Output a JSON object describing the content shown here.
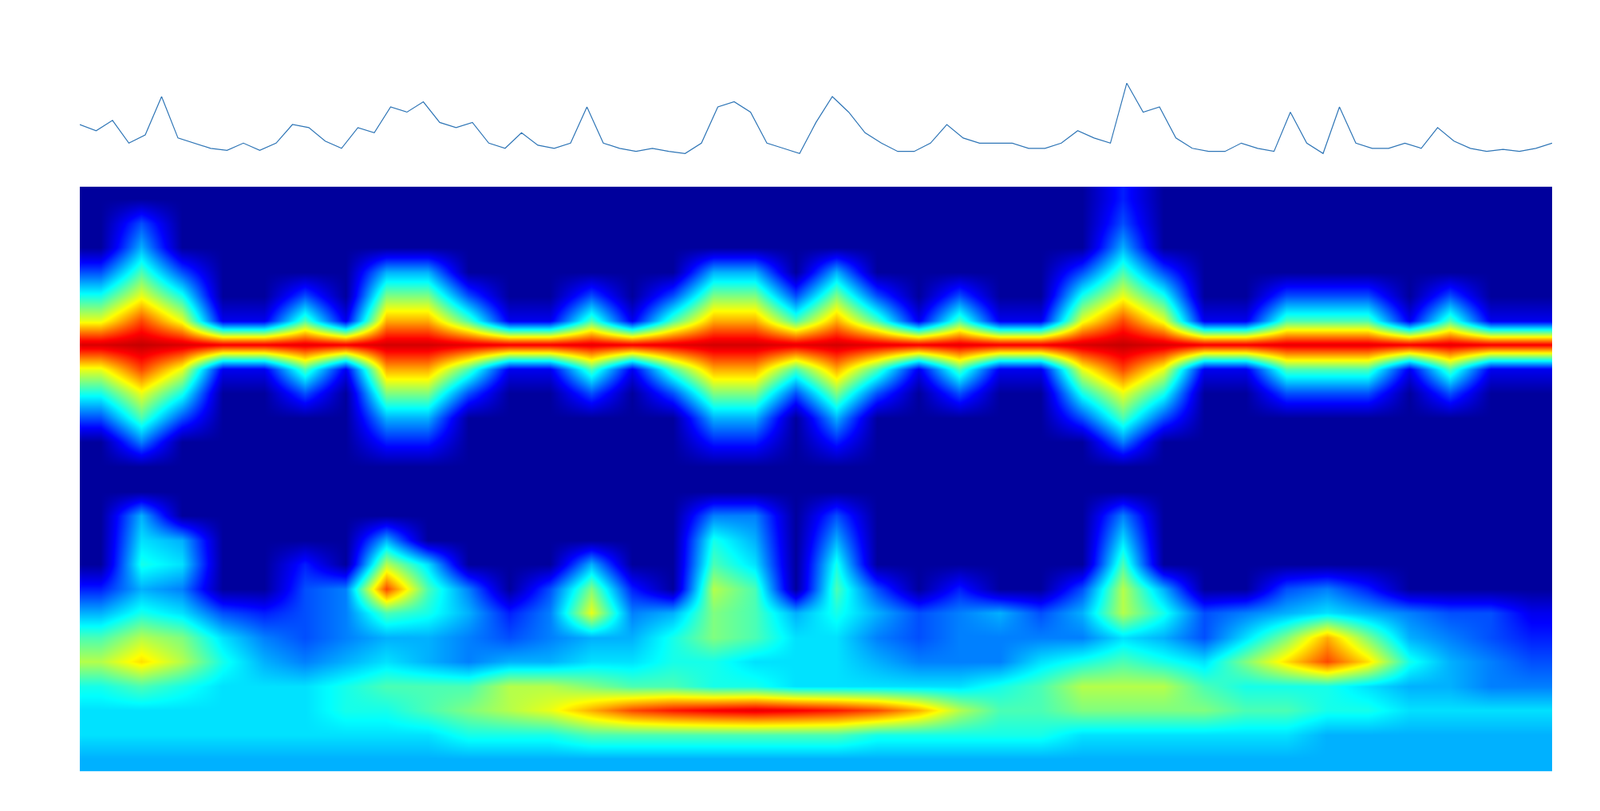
{
  "chart_data": [
    {
      "type": "line",
      "color": "#2e75b6",
      "tick_labels": false,
      "x": [
        0,
        1,
        2,
        3,
        4,
        5,
        6,
        7,
        8,
        9,
        10,
        11,
        12,
        13,
        14,
        15,
        16,
        17,
        18,
        19,
        20,
        21,
        22,
        23,
        24,
        25,
        26,
        27,
        28,
        29,
        30,
        31,
        32,
        33,
        34,
        35,
        36,
        37,
        38,
        39,
        40,
        41,
        42,
        43,
        44,
        45,
        46,
        47,
        48,
        49,
        50,
        51,
        52,
        53,
        54,
        55,
        56,
        57,
        58,
        59,
        60,
        61,
        62,
        63,
        64,
        65,
        66,
        67,
        68,
        69,
        70,
        71,
        72,
        73,
        74,
        75,
        76,
        77,
        78,
        79,
        80,
        81,
        82,
        83,
        84,
        85,
        86,
        87,
        88,
        89,
        90
      ],
      "values": [
        43,
        37,
        47,
        25,
        33,
        70,
        30,
        25,
        20,
        18,
        25,
        18,
        25,
        43,
        40,
        27,
        20,
        40,
        35,
        60,
        55,
        65,
        45,
        40,
        45,
        25,
        20,
        35,
        23,
        20,
        25,
        60,
        25,
        20,
        17,
        20,
        17,
        15,
        25,
        60,
        65,
        55,
        25,
        20,
        15,
        45,
        70,
        55,
        35,
        25,
        17,
        17,
        25,
        43,
        30,
        25,
        25,
        25,
        20,
        20,
        25,
        37,
        30,
        25,
        83,
        55,
        60,
        30,
        20,
        17,
        17,
        25,
        20,
        17,
        55,
        25,
        15,
        60,
        25,
        20,
        20,
        25,
        20,
        40,
        27,
        20,
        17,
        19,
        17,
        20,
        25
      ],
      "xlim": [
        0,
        90
      ],
      "ylim": [
        5,
        85
      ]
    },
    {
      "type": "heatmap",
      "tick_labels": false,
      "x": [
        0,
        1,
        2,
        3,
        4,
        5,
        6,
        7,
        8,
        9,
        10,
        11,
        12,
        13,
        14,
        15,
        16,
        17,
        18,
        19,
        20,
        21,
        22,
        23,
        24,
        25,
        26,
        27,
        28,
        29,
        30,
        31,
        32,
        33,
        34,
        35
      ],
      "y": [
        0,
        1,
        2,
        3,
        4,
        5,
        6,
        7,
        8,
        9,
        10,
        11,
        12,
        13,
        14,
        15,
        16,
        17,
        18,
        19,
        20,
        21,
        22,
        23
      ],
      "xlim": [
        -0.5,
        35.5
      ],
      "ylim": [
        23.5,
        -0.5
      ],
      "zlim": [
        0,
        100
      ],
      "cells": [
        [
          0,
          0,
          0,
          0,
          0,
          0,
          0,
          0,
          0,
          0,
          0,
          0,
          0,
          0,
          0,
          0,
          0,
          0,
          0,
          0,
          0,
          0,
          0,
          0,
          0,
          15,
          0,
          0,
          0,
          0,
          0,
          0,
          0,
          0,
          0,
          0
        ],
        [
          0,
          20,
          0,
          0,
          0,
          0,
          0,
          0,
          0,
          0,
          0,
          0,
          0,
          0,
          0,
          0,
          0,
          0,
          0,
          0,
          0,
          0,
          0,
          0,
          0,
          20,
          0,
          0,
          0,
          0,
          0,
          0,
          0,
          0,
          0,
          0
        ],
        [
          0,
          30,
          0,
          0,
          0,
          0,
          0,
          0,
          0,
          0,
          0,
          0,
          0,
          0,
          0,
          0,
          0,
          0,
          0,
          0,
          0,
          0,
          0,
          0,
          0,
          30,
          0,
          0,
          0,
          0,
          0,
          0,
          0,
          0,
          0,
          0
        ],
        [
          20,
          45,
          20,
          0,
          0,
          0,
          0,
          30,
          30,
          0,
          0,
          0,
          0,
          0,
          0,
          30,
          30,
          0,
          30,
          0,
          0,
          0,
          0,
          0,
          20,
          45,
          20,
          0,
          0,
          0,
          0,
          0,
          0,
          0,
          0,
          0
        ],
        [
          40,
          60,
          40,
          0,
          0,
          20,
          0,
          50,
          50,
          20,
          0,
          0,
          20,
          0,
          20,
          50,
          50,
          20,
          50,
          20,
          0,
          20,
          0,
          0,
          40,
          60,
          40,
          0,
          0,
          20,
          20,
          20,
          0,
          20,
          0,
          0
        ],
        [
          60,
          80,
          60,
          10,
          10,
          45,
          10,
          70,
          70,
          45,
          10,
          10,
          45,
          10,
          45,
          70,
          70,
          45,
          70,
          45,
          10,
          45,
          10,
          10,
          60,
          80,
          60,
          10,
          10,
          45,
          45,
          45,
          10,
          45,
          10,
          10
        ],
        [
          92,
          95,
          92,
          88,
          88,
          90,
          88,
          93,
          93,
          90,
          88,
          88,
          90,
          88,
          90,
          93,
          93,
          90,
          93,
          90,
          88,
          90,
          88,
          88,
          92,
          95,
          92,
          88,
          88,
          90,
          90,
          90,
          88,
          90,
          88,
          88
        ],
        [
          60,
          80,
          60,
          10,
          10,
          45,
          10,
          70,
          70,
          45,
          10,
          10,
          45,
          10,
          45,
          70,
          70,
          45,
          70,
          45,
          10,
          45,
          10,
          10,
          60,
          80,
          60,
          10,
          10,
          45,
          45,
          45,
          10,
          45,
          10,
          10
        ],
        [
          40,
          60,
          40,
          0,
          0,
          20,
          0,
          50,
          50,
          20,
          0,
          0,
          20,
          0,
          20,
          50,
          50,
          20,
          50,
          20,
          0,
          20,
          0,
          0,
          40,
          60,
          40,
          0,
          0,
          20,
          20,
          20,
          0,
          20,
          0,
          0
        ],
        [
          20,
          45,
          20,
          0,
          0,
          0,
          0,
          30,
          30,
          0,
          0,
          0,
          0,
          0,
          0,
          30,
          30,
          0,
          30,
          0,
          0,
          0,
          0,
          0,
          20,
          45,
          20,
          0,
          0,
          0,
          0,
          0,
          0,
          0,
          0,
          0
        ],
        [
          0,
          25,
          0,
          0,
          0,
          0,
          0,
          15,
          15,
          0,
          0,
          0,
          0,
          0,
          0,
          15,
          15,
          0,
          15,
          0,
          0,
          0,
          0,
          0,
          0,
          25,
          0,
          0,
          0,
          0,
          0,
          0,
          0,
          0,
          0,
          0
        ],
        [
          0,
          0,
          0,
          0,
          0,
          0,
          0,
          0,
          0,
          0,
          0,
          0,
          0,
          0,
          0,
          0,
          0,
          0,
          0,
          0,
          0,
          0,
          0,
          0,
          0,
          0,
          0,
          0,
          0,
          0,
          0,
          0,
          0,
          0,
          0,
          0
        ],
        [
          0,
          0,
          0,
          0,
          0,
          0,
          0,
          0,
          0,
          0,
          0,
          0,
          0,
          0,
          0,
          0,
          0,
          0,
          0,
          0,
          0,
          0,
          0,
          0,
          0,
          0,
          0,
          0,
          0,
          0,
          0,
          0,
          0,
          0,
          0,
          0
        ],
        [
          0,
          30,
          0,
          0,
          0,
          0,
          0,
          0,
          0,
          0,
          0,
          0,
          0,
          0,
          0,
          25,
          25,
          0,
          20,
          0,
          0,
          0,
          0,
          0,
          0,
          25,
          0,
          0,
          0,
          0,
          0,
          0,
          0,
          0,
          0,
          0
        ],
        [
          0,
          35,
          30,
          0,
          0,
          0,
          0,
          30,
          0,
          0,
          0,
          0,
          0,
          0,
          0,
          40,
          30,
          0,
          30,
          0,
          0,
          0,
          0,
          0,
          0,
          35,
          0,
          0,
          0,
          0,
          0,
          0,
          0,
          0,
          0,
          0
        ],
        [
          0,
          40,
          35,
          0,
          0,
          15,
          0,
          55,
          35,
          0,
          0,
          0,
          30,
          0,
          0,
          45,
          35,
          0,
          40,
          0,
          0,
          0,
          0,
          0,
          0,
          45,
          0,
          0,
          0,
          0,
          0,
          0,
          0,
          0,
          0,
          0
        ],
        [
          15,
          30,
          25,
          0,
          0,
          20,
          25,
          80,
          45,
          25,
          0,
          20,
          50,
          15,
          0,
          55,
          45,
          0,
          45,
          20,
          0,
          15,
          0,
          0,
          20,
          55,
          30,
          0,
          0,
          20,
          25,
          15,
          0,
          0,
          0,
          0
        ],
        [
          30,
          40,
          35,
          20,
          15,
          20,
          25,
          45,
          40,
          30,
          15,
          25,
          60,
          25,
          30,
          50,
          45,
          30,
          40,
          30,
          20,
          25,
          30,
          20,
          30,
          55,
          40,
          20,
          25,
          30,
          35,
          30,
          25,
          20,
          20,
          10
        ],
        [
          45,
          55,
          50,
          35,
          25,
          20,
          25,
          30,
          30,
          25,
          20,
          25,
          30,
          30,
          40,
          50,
          45,
          35,
          35,
          25,
          20,
          25,
          25,
          25,
          25,
          35,
          30,
          20,
          35,
          50,
          70,
          50,
          30,
          25,
          20,
          15
        ],
        [
          55,
          65,
          55,
          40,
          30,
          25,
          30,
          35,
          30,
          25,
          30,
          30,
          35,
          35,
          40,
          40,
          35,
          35,
          35,
          30,
          25,
          25,
          25,
          35,
          40,
          45,
          40,
          35,
          50,
          65,
          80,
          65,
          40,
          30,
          25,
          20
        ],
        [
          40,
          45,
          40,
          35,
          35,
          35,
          40,
          45,
          45,
          45,
          55,
          55,
          50,
          45,
          45,
          40,
          40,
          35,
          35,
          35,
          35,
          35,
          40,
          45,
          55,
          55,
          55,
          45,
          40,
          40,
          40,
          35,
          30,
          30,
          25,
          25
        ],
        [
          35,
          35,
          35,
          35,
          35,
          35,
          40,
          40,
          45,
          50,
          55,
          60,
          70,
          80,
          85,
          88,
          90,
          88,
          85,
          80,
          70,
          55,
          45,
          45,
          50,
          50,
          50,
          50,
          45,
          45,
          40,
          40,
          35,
          35,
          35,
          35
        ],
        [
          35,
          35,
          35,
          35,
          35,
          35,
          35,
          35,
          35,
          40,
          40,
          40,
          45,
          45,
          45,
          45,
          45,
          45,
          45,
          40,
          40,
          40,
          40,
          40,
          35,
          35,
          35,
          35,
          35,
          35,
          30,
          30,
          30,
          30,
          30,
          30
        ],
        [
          30,
          30,
          30,
          30,
          30,
          30,
          30,
          30,
          30,
          30,
          30,
          30,
          30,
          30,
          30,
          30,
          30,
          30,
          30,
          30,
          30,
          30,
          30,
          30,
          30,
          30,
          30,
          30,
          30,
          30,
          30,
          30,
          30,
          30,
          30,
          30
        ]
      ]
    }
  ]
}
